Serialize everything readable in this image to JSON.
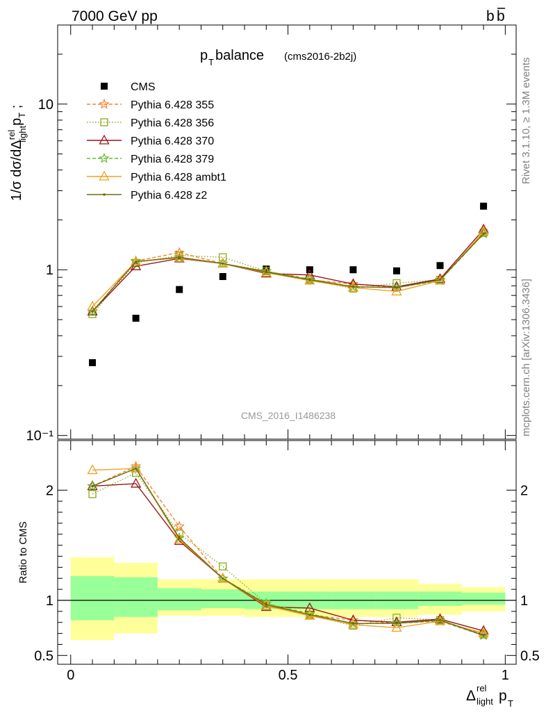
{
  "header": {
    "left": "7000 GeV pp",
    "right_base": "b",
    "right_bar": "b"
  },
  "side_labels": {
    "rivet": "Rivet 3.1.10, ≥ 1.3M events",
    "mcplots": "mcplots.cern.ch [arXiv:1306.3436]"
  },
  "plot": {
    "title_main": "p",
    "title_sub": "T",
    "title_rest": " balance",
    "title_small": "(cms2016-2b2j)",
    "watermark": "CMS_2016_I1486238",
    "ylabel_top": "1/σ dσ/dΔ",
    "ylabel_top_sup": "rel",
    "ylabel_top_sub": "light",
    "ylabel_top_tail": "p",
    "ylabel_top_tail_sub": "T",
    "ylabel_top_end": " ;",
    "ylabel_bottom": "Ratio to CMS",
    "xlabel_delta": "Δ",
    "xlabel_sup": "rel",
    "xlabel_sub": "light",
    "xlabel_p": "p",
    "xlabel_p_sub": "T"
  },
  "chart_data": {
    "type": "scatter",
    "x": [
      0.05,
      0.15,
      0.25,
      0.35,
      0.45,
      0.55,
      0.65,
      0.75,
      0.85,
      0.95
    ],
    "x_edges": [
      0,
      0.1,
      0.2,
      0.3,
      0.4,
      0.5,
      0.6,
      0.7,
      0.8,
      0.9,
      1.0
    ],
    "xlim": [
      -0.03,
      1.025
    ],
    "x_ticks": [
      0,
      0.5,
      1
    ],
    "x_tick_labels": [
      "0",
      "0.5",
      "1"
    ],
    "main": {
      "yscale": "log",
      "ylim": [
        0.095,
        30
      ],
      "y_ticks": [
        0.1,
        1,
        10
      ],
      "y_tick_labels": [
        "10⁻¹",
        "1",
        "10"
      ]
    },
    "ratio": {
      "ylim": [
        0.42,
        2.45
      ],
      "y_ticks": [
        0.5,
        1,
        2
      ],
      "y_tick_labels": [
        "0.5",
        "1",
        "2"
      ],
      "band_green": [
        [
          0.82,
          1.22
        ],
        [
          0.85,
          1.21
        ],
        [
          0.91,
          1.11
        ],
        [
          0.93,
          1.1
        ],
        [
          0.92,
          1.08
        ],
        [
          0.92,
          1.08
        ],
        [
          0.92,
          1.08
        ],
        [
          0.92,
          1.08
        ],
        [
          0.95,
          1.08
        ],
        [
          0.96,
          1.07
        ]
      ],
      "band_yellow": [
        [
          0.64,
          1.39
        ],
        [
          0.7,
          1.34
        ],
        [
          0.86,
          1.19
        ],
        [
          0.86,
          1.19
        ],
        [
          0.85,
          1.19
        ],
        [
          0.85,
          1.19
        ],
        [
          0.85,
          1.19
        ],
        [
          0.85,
          1.19
        ],
        [
          0.87,
          1.15
        ],
        [
          0.9,
          1.12
        ]
      ]
    },
    "legend_position": "top-left",
    "series": [
      {
        "name": "CMS",
        "values": [
          0.275,
          0.51,
          0.76,
          0.91,
          1.01,
          1.0,
          1.0,
          0.985,
          1.06,
          2.42
        ],
        "color": "#000000",
        "marker": "square",
        "line": "none"
      },
      {
        "name": "Pythia 6.428 355",
        "values": [
          0.56,
          1.13,
          1.27,
          1.09,
          0.98,
          0.87,
          0.82,
          0.78,
          0.87,
          1.67
        ],
        "color": "#ff7f27",
        "marker": "star",
        "line": "dashed"
      },
      {
        "name": "Pythia 6.428 356",
        "values": [
          0.54,
          1.1,
          1.22,
          1.19,
          0.98,
          0.87,
          0.77,
          0.83,
          0.87,
          1.67
        ],
        "color": "#8ca820",
        "marker": "open-square",
        "line": "dotted"
      },
      {
        "name": "Pythia 6.428 370",
        "values": [
          0.56,
          1.05,
          1.17,
          1.09,
          0.95,
          0.93,
          0.82,
          0.79,
          0.88,
          1.75
        ],
        "color": "#991515",
        "marker": "open-triangle",
        "line": "solid"
      },
      {
        "name": "Pythia 6.428 379",
        "values": [
          0.56,
          1.12,
          1.19,
          1.09,
          0.98,
          0.88,
          0.79,
          0.78,
          0.86,
          1.65
        ],
        "color": "#66bb30",
        "marker": "star",
        "line": "dashed"
      },
      {
        "name": "Pythia 6.428 ambt1",
        "values": [
          0.6,
          1.12,
          1.18,
          1.09,
          0.96,
          0.86,
          0.78,
          0.74,
          0.86,
          1.7
        ],
        "color": "#f0a020",
        "marker": "open-triangle",
        "line": "solid"
      },
      {
        "name": "Pythia 6.428 z2",
        "values": [
          0.56,
          1.12,
          1.19,
          1.09,
          0.97,
          0.87,
          0.79,
          0.78,
          0.87,
          1.65
        ],
        "color": "#6b6b10",
        "marker": "dot",
        "line": "solid"
      }
    ]
  }
}
